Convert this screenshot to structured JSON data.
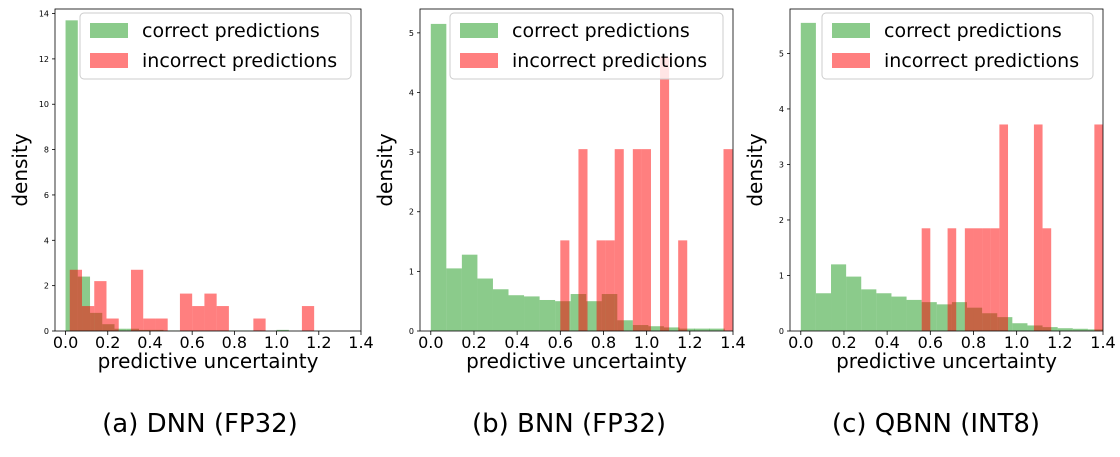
{
  "chart_data": [
    {
      "type": "bar",
      "caption": "(a) DNN (FP32)",
      "xlabel": "predictive uncertainty",
      "ylabel": "density",
      "xlim": [
        -0.05,
        1.4
      ],
      "ylim": [
        0,
        14.2
      ],
      "xticks": [
        "0.0",
        "0.2",
        "0.4",
        "0.6",
        "0.8",
        "1.0",
        "1.2",
        "1.4"
      ],
      "yticks": [
        "0",
        "2",
        "4",
        "6",
        "8",
        "10",
        "12",
        "14"
      ],
      "legend": "top-right",
      "series": [
        {
          "name": "correct predictions",
          "color": "#2ca02c",
          "alpha": 0.55,
          "bin_width": 0.058,
          "bins": [
            [
              0.0,
              13.7
            ],
            [
              0.058,
              2.4
            ],
            [
              0.116,
              0.8
            ],
            [
              0.174,
              0.3
            ],
            [
              0.232,
              0.1
            ],
            [
              0.29,
              0.1
            ],
            [
              0.348,
              0.05
            ],
            [
              0.406,
              0.05
            ],
            [
              0.464,
              0.02
            ],
            [
              0.522,
              0.02
            ],
            [
              0.58,
              0.02
            ],
            [
              0.638,
              0.02
            ],
            [
              0.696,
              0.02
            ],
            [
              0.754,
              0.02
            ],
            [
              0.812,
              0.02
            ],
            [
              0.87,
              0.02
            ],
            [
              1.0,
              0.05
            ]
          ]
        },
        {
          "name": "incorrect predictions",
          "color": "#ff0000",
          "alpha": 0.5,
          "bin_width": 0.058,
          "bins": [
            [
              0.02,
              2.7
            ],
            [
              0.078,
              1.1
            ],
            [
              0.136,
              2.2
            ],
            [
              0.194,
              0.55
            ],
            [
              0.31,
              2.7
            ],
            [
              0.368,
              0.55
            ],
            [
              0.426,
              0.55
            ],
            [
              0.542,
              1.65
            ],
            [
              0.6,
              1.1
            ],
            [
              0.658,
              1.65
            ],
            [
              0.716,
              1.1
            ],
            [
              0.89,
              0.55
            ],
            [
              1.12,
              1.1
            ]
          ]
        }
      ]
    },
    {
      "type": "bar",
      "caption": "(b) BNN (FP32)",
      "xlabel": "predictive uncertainty",
      "ylabel": "density",
      "xlim": [
        -0.05,
        1.4
      ],
      "ylim": [
        0,
        5.4
      ],
      "xticks": [
        "0.0",
        "0.2",
        "0.4",
        "0.6",
        "0.8",
        "1.0",
        "1.2",
        "1.4"
      ],
      "yticks": [
        "0",
        "1",
        "2",
        "3",
        "4",
        "5"
      ],
      "legend": "top-right",
      "series": [
        {
          "name": "correct predictions",
          "color": "#2ca02c",
          "alpha": 0.55,
          "bin_width": 0.072,
          "bins": [
            [
              0.0,
              5.15
            ],
            [
              0.072,
              1.05
            ],
            [
              0.144,
              1.28
            ],
            [
              0.216,
              0.88
            ],
            [
              0.288,
              0.7
            ],
            [
              0.36,
              0.6
            ],
            [
              0.432,
              0.58
            ],
            [
              0.504,
              0.52
            ],
            [
              0.576,
              0.5
            ],
            [
              0.648,
              0.62
            ],
            [
              0.72,
              0.5
            ],
            [
              0.792,
              0.62
            ],
            [
              0.864,
              0.18
            ],
            [
              0.936,
              0.1
            ],
            [
              1.008,
              0.08
            ],
            [
              1.08,
              0.06
            ],
            [
              1.15,
              0.04
            ],
            [
              1.22,
              0.04
            ],
            [
              1.29,
              0.04
            ]
          ]
        },
        {
          "name": "incorrect predictions",
          "color": "#ff0000",
          "alpha": 0.5,
          "bin_width": 0.042,
          "bins": [
            [
              0.6,
              1.52
            ],
            [
              0.684,
              3.05
            ],
            [
              0.768,
              1.52
            ],
            [
              0.81,
              1.52
            ],
            [
              0.852,
              3.05
            ],
            [
              0.936,
              3.05
            ],
            [
              0.978,
              3.05
            ],
            [
              1.062,
              4.6
            ],
            [
              1.146,
              1.52
            ],
            [
              1.356,
              3.05
            ]
          ]
        }
      ]
    },
    {
      "type": "bar",
      "caption": "(c) QBNN (INT8)",
      "xlabel": "predictive uncertainty",
      "ylabel": "density",
      "xlim": [
        -0.05,
        1.4
      ],
      "ylim": [
        0,
        5.8
      ],
      "xticks": [
        "0.0",
        "0.2",
        "0.4",
        "0.6",
        "0.8",
        "1.0",
        "1.2",
        "1.4"
      ],
      "yticks": [
        "0",
        "1",
        "2",
        "3",
        "4",
        "5"
      ],
      "legend": "top-right",
      "series": [
        {
          "name": "correct predictions",
          "color": "#2ca02c",
          "alpha": 0.55,
          "bin_width": 0.07,
          "bins": [
            [
              0.0,
              5.55
            ],
            [
              0.07,
              0.68
            ],
            [
              0.14,
              1.2
            ],
            [
              0.21,
              0.98
            ],
            [
              0.28,
              0.75
            ],
            [
              0.35,
              0.68
            ],
            [
              0.42,
              0.62
            ],
            [
              0.49,
              0.56
            ],
            [
              0.56,
              0.52
            ],
            [
              0.63,
              0.48
            ],
            [
              0.7,
              0.52
            ],
            [
              0.77,
              0.42
            ],
            [
              0.84,
              0.32
            ],
            [
              0.91,
              0.25
            ],
            [
              0.98,
              0.14
            ],
            [
              1.05,
              0.1
            ],
            [
              1.12,
              0.07
            ],
            [
              1.19,
              0.05
            ],
            [
              1.26,
              0.04
            ],
            [
              1.33,
              0.03
            ]
          ]
        },
        {
          "name": "incorrect predictions",
          "color": "#ff0000",
          "alpha": 0.5,
          "bin_width": 0.04,
          "bins": [
            [
              0.56,
              1.85
            ],
            [
              0.68,
              1.85
            ],
            [
              0.76,
              1.85
            ],
            [
              0.8,
              1.85
            ],
            [
              0.84,
              1.85
            ],
            [
              0.88,
              1.85
            ],
            [
              0.92,
              3.72
            ],
            [
              1.08,
              3.72
            ],
            [
              1.12,
              1.85
            ],
            [
              1.36,
              3.72
            ]
          ]
        }
      ]
    }
  ]
}
